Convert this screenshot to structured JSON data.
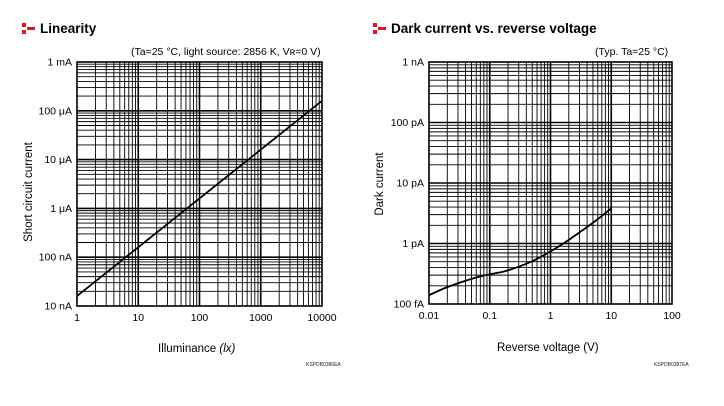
{
  "chart_data": [
    {
      "type": "line",
      "title": "Linearity",
      "subtitle": "(Ta=25 °C, light source: 2856 K, Vʀ=0 V)",
      "xlabel": "Illuminance",
      "xlabel_unit": "(lx)",
      "ylabel": "Short circuit current",
      "xscale": "log",
      "yscale": "log",
      "xlim": [
        1,
        10000
      ],
      "ylim_amperes": [
        1e-08,
        0.001
      ],
      "x_tick_labels": [
        "1",
        "10",
        "100",
        "1000",
        "10000"
      ],
      "y_tick_labels": [
        "10 nA",
        "100 nA",
        "1 μA",
        "10 μA",
        "100 μA",
        "1 mA"
      ],
      "grid": true,
      "series": [
        {
          "x": [
            1,
            10,
            100,
            1000,
            10000
          ],
          "y_amperes": [
            1.6e-08,
            1.6e-07,
            1.6e-06,
            1.6e-05,
            0.00016
          ]
        }
      ],
      "figure_code": "KSPDB0386EA"
    },
    {
      "type": "line",
      "title": "Dark current vs. reverse voltage",
      "subtitle": "(Typ. Ta=25 °C)",
      "xlabel": "Reverse voltage (V)",
      "ylabel": "Dark current",
      "xscale": "log",
      "yscale": "log",
      "xlim": [
        0.01,
        100
      ],
      "ylim_amperes": [
        1e-13,
        1e-09
      ],
      "x_tick_labels": [
        "0.01",
        "0.1",
        "1",
        "10",
        "100"
      ],
      "y_tick_labels": [
        "100 fA",
        "1 pA",
        "10 pA",
        "100 pA",
        "1 nA"
      ],
      "grid": true,
      "series": [
        {
          "x": [
            0.01,
            0.02,
            0.05,
            0.1,
            0.2,
            0.5,
            1,
            2,
            5,
            10
          ],
          "y_amperes": [
            1.4e-13,
            1.9e-13,
            2.6e-13,
            3.1e-13,
            3.6e-13,
            5.1e-13,
            7.4e-13,
            1.15e-12,
            2.2e-12,
            3.8e-12
          ]
        }
      ],
      "figure_code": "KSPDB0387EA"
    }
  ],
  "colors": {
    "accent": "#e1141e",
    "ink": "#000000",
    "plot_bg": "#ffffff"
  },
  "icon": "hamamatsu-bullet-icon"
}
